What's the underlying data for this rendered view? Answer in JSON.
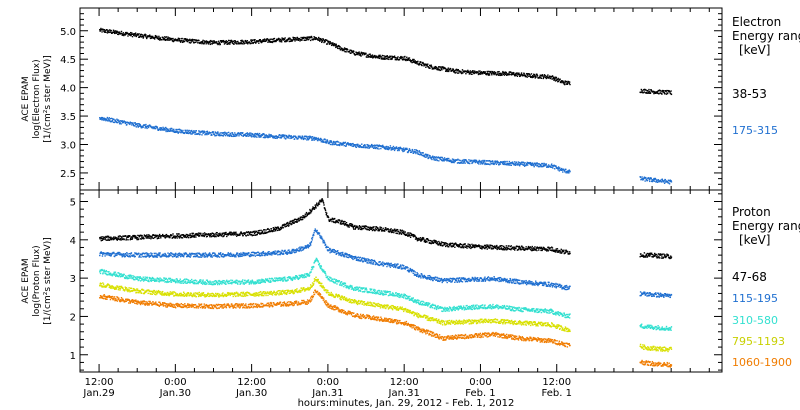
{
  "chart_data": [
    {
      "type": "scatter",
      "panel": "electron",
      "ylabel": [
        "ACE EPAM",
        "log(Electron Flux)",
        "[1/(cm²s ster MeV)]"
      ],
      "ylim": [
        2.2,
        5.4
      ],
      "yticks": [
        "2.5",
        "3.0",
        "3.5",
        "4.0",
        "4.5",
        "5.0"
      ],
      "ytick_values": [
        2.5,
        3.0,
        3.5,
        4.0,
        4.5,
        5.0
      ],
      "legend_title": [
        "Electron",
        "Energy ranges",
        "[keV]"
      ],
      "legend_placement": "right",
      "series": [
        {
          "name": "38-53",
          "color": "#000000",
          "points": [
            [
              0,
              5.02
            ],
            [
              6,
              4.93
            ],
            [
              12,
              4.85
            ],
            [
              18,
              4.8
            ],
            [
              24,
              4.82
            ],
            [
              30,
              4.86
            ],
            [
              34,
              4.88
            ],
            [
              36,
              4.8
            ],
            [
              38,
              4.7
            ],
            [
              40,
              4.62
            ],
            [
              44,
              4.55
            ],
            [
              48,
              4.53
            ],
            [
              50,
              4.45
            ],
            [
              52,
              4.38
            ],
            [
              56,
              4.3
            ],
            [
              60,
              4.27
            ],
            [
              64,
              4.26
            ],
            [
              68,
              4.22
            ],
            [
              71,
              4.2
            ],
            [
              73,
              4.1
            ],
            [
              86,
              3.95
            ],
            [
              90,
              3.92
            ]
          ]
        },
        {
          "name": "175-315",
          "color": "#1f6fd0",
          "points": [
            [
              0,
              3.48
            ],
            [
              6,
              3.35
            ],
            [
              12,
              3.25
            ],
            [
              18,
              3.2
            ],
            [
              24,
              3.18
            ],
            [
              30,
              3.14
            ],
            [
              34,
              3.12
            ],
            [
              36,
              3.05
            ],
            [
              40,
              3.0
            ],
            [
              46,
              2.95
            ],
            [
              50,
              2.88
            ],
            [
              52,
              2.78
            ],
            [
              56,
              2.72
            ],
            [
              60,
              2.7
            ],
            [
              66,
              2.67
            ],
            [
              71,
              2.64
            ],
            [
              73,
              2.55
            ],
            [
              86,
              2.4
            ],
            [
              90,
              2.35
            ]
          ]
        }
      ]
    },
    {
      "type": "scatter",
      "panel": "proton",
      "ylabel": [
        "ACE EPAM",
        "log(Proton Flux)",
        "[1/(cm²s ster MeV)]"
      ],
      "ylim": [
        0.55,
        5.3
      ],
      "yticks": [
        "1",
        "2",
        "3",
        "4",
        "5"
      ],
      "ytick_values": [
        1,
        2,
        3,
        4,
        5
      ],
      "legend_title": [
        "Proton",
        "Energy ranges",
        "[keV]"
      ],
      "legend_placement": "right",
      "series": [
        {
          "name": "47-68",
          "color": "#000000",
          "points": [
            [
              0,
              4.05
            ],
            [
              6,
              4.08
            ],
            [
              12,
              4.12
            ],
            [
              18,
              4.15
            ],
            [
              24,
              4.18
            ],
            [
              28,
              4.3
            ],
            [
              32,
              4.6
            ],
            [
              34,
              4.9
            ],
            [
              35,
              5.05
            ],
            [
              36,
              4.55
            ],
            [
              38,
              4.48
            ],
            [
              40,
              4.35
            ],
            [
              44,
              4.3
            ],
            [
              48,
              4.2
            ],
            [
              50,
              4.05
            ],
            [
              54,
              3.9
            ],
            [
              58,
              3.85
            ],
            [
              62,
              3.82
            ],
            [
              66,
              3.8
            ],
            [
              71,
              3.78
            ],
            [
              73,
              3.7
            ],
            [
              86,
              3.62
            ],
            [
              90,
              3.58
            ]
          ]
        },
        {
          "name": "115-195",
          "color": "#1f6fd0",
          "points": [
            [
              0,
              3.65
            ],
            [
              6,
              3.62
            ],
            [
              12,
              3.62
            ],
            [
              18,
              3.62
            ],
            [
              24,
              3.64
            ],
            [
              30,
              3.7
            ],
            [
              33,
              3.85
            ],
            [
              34,
              4.3
            ],
            [
              36,
              3.75
            ],
            [
              40,
              3.55
            ],
            [
              44,
              3.4
            ],
            [
              48,
              3.3
            ],
            [
              50,
              3.1
            ],
            [
              54,
              2.95
            ],
            [
              58,
              2.98
            ],
            [
              62,
              3.0
            ],
            [
              66,
              2.92
            ],
            [
              71,
              2.85
            ],
            [
              73,
              2.78
            ],
            [
              86,
              2.6
            ],
            [
              90,
              2.55
            ]
          ]
        },
        {
          "name": "310-580",
          "color": "#33e0d0",
          "points": [
            [
              0,
              3.2
            ],
            [
              6,
              3.0
            ],
            [
              12,
              2.95
            ],
            [
              18,
              2.9
            ],
            [
              24,
              2.92
            ],
            [
              30,
              3.0
            ],
            [
              33,
              3.1
            ],
            [
              34,
              3.5
            ],
            [
              36,
              3.0
            ],
            [
              40,
              2.75
            ],
            [
              44,
              2.65
            ],
            [
              48,
              2.55
            ],
            [
              50,
              2.4
            ],
            [
              54,
              2.2
            ],
            [
              58,
              2.25
            ],
            [
              62,
              2.28
            ],
            [
              66,
              2.2
            ],
            [
              71,
              2.15
            ],
            [
              73,
              2.05
            ],
            [
              86,
              1.75
            ],
            [
              90,
              1.7
            ]
          ]
        },
        {
          "name": "795-1193",
          "color": "#d8e000",
          "points": [
            [
              0,
              2.85
            ],
            [
              6,
              2.68
            ],
            [
              12,
              2.6
            ],
            [
              18,
              2.58
            ],
            [
              24,
              2.6
            ],
            [
              30,
              2.65
            ],
            [
              33,
              2.75
            ],
            [
              34,
              3.0
            ],
            [
              36,
              2.62
            ],
            [
              40,
              2.4
            ],
            [
              44,
              2.3
            ],
            [
              48,
              2.2
            ],
            [
              50,
              2.05
            ],
            [
              54,
              1.85
            ],
            [
              58,
              1.88
            ],
            [
              62,
              1.9
            ],
            [
              66,
              1.85
            ],
            [
              71,
              1.8
            ],
            [
              73,
              1.7
            ],
            [
              86,
              1.2
            ],
            [
              90,
              1.15
            ]
          ]
        },
        {
          "name": "1060-1900",
          "color": "#f07c00",
          "points": [
            [
              0,
              2.55
            ],
            [
              6,
              2.38
            ],
            [
              12,
              2.3
            ],
            [
              18,
              2.28
            ],
            [
              24,
              2.3
            ],
            [
              30,
              2.35
            ],
            [
              33,
              2.4
            ],
            [
              34,
              2.7
            ],
            [
              36,
              2.3
            ],
            [
              40,
              2.05
            ],
            [
              44,
              1.95
            ],
            [
              48,
              1.85
            ],
            [
              50,
              1.7
            ],
            [
              54,
              1.45
            ],
            [
              58,
              1.5
            ],
            [
              62,
              1.55
            ],
            [
              66,
              1.45
            ],
            [
              71,
              1.38
            ],
            [
              73,
              1.3
            ],
            [
              86,
              0.8
            ],
            [
              90,
              0.75
            ]
          ]
        }
      ]
    }
  ],
  "x_axis": {
    "hours_range": [
      -3,
      98
    ],
    "ticks": [
      {
        "hour": 0,
        "time": "12:00",
        "date": "Jan.29"
      },
      {
        "hour": 12,
        "time": "0:00",
        "date": "Jan.30"
      },
      {
        "hour": 24,
        "time": "12:00",
        "date": "Jan.30"
      },
      {
        "hour": 36,
        "time": "0:00",
        "date": "Jan.31"
      },
      {
        "hour": 48,
        "time": "12:00",
        "date": "Jan.31"
      },
      {
        "hour": 60,
        "time": "0:00",
        "date": "Feb. 1"
      },
      {
        "hour": 72,
        "time": "12:00",
        "date": "Feb. 1"
      }
    ],
    "minor_step_hours": 3,
    "label": "hours:minutes, Jan. 29, 2012 - Feb.  1, 2012"
  },
  "data_gaps": [
    [
      74,
      85
    ]
  ],
  "grid": false
}
